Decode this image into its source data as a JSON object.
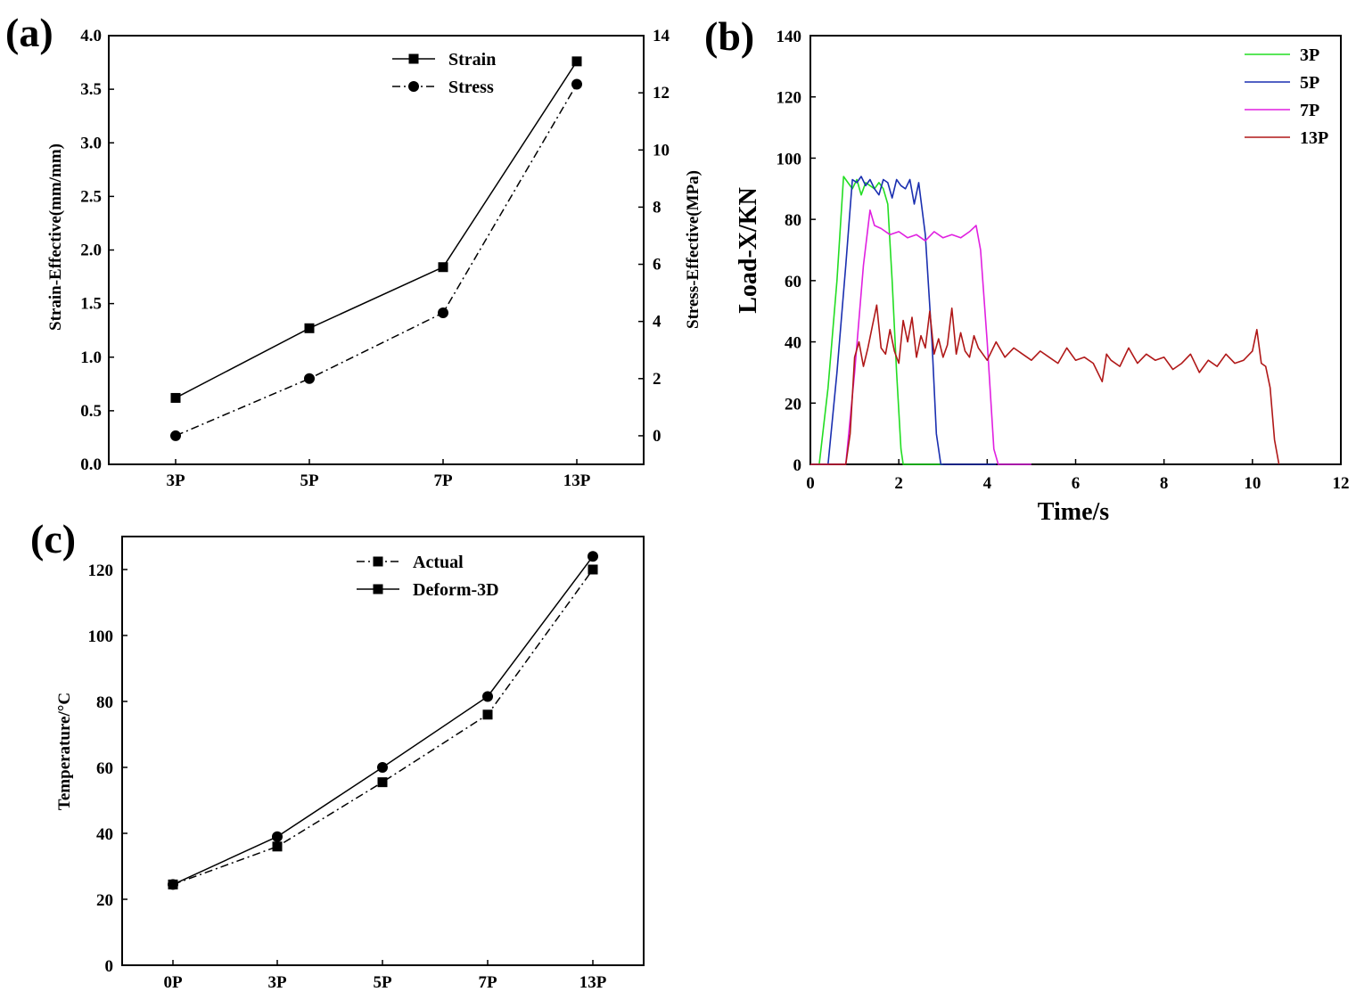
{
  "chart_data": [
    {
      "id": "a",
      "panel_label": "(a)",
      "type": "line",
      "categories": [
        "3P",
        "5P",
        "7P",
        "13P"
      ],
      "ylabel": "Strain-Effective(mm/mm)",
      "ylabel_right": "Stress-Effective(MPa)",
      "ylim": [
        0,
        4.0
      ],
      "ylim_right": [
        -1.0,
        14
      ],
      "yticks": [
        "0.0",
        "0.5",
        "1.0",
        "1.5",
        "2.0",
        "2.5",
        "3.0",
        "3.5",
        "4.0"
      ],
      "yticks_right": [
        "0",
        "2",
        "4",
        "6",
        "8",
        "10",
        "12",
        "14"
      ],
      "legend_position": "top-center",
      "series": [
        {
          "name": "Strain",
          "axis": "left",
          "marker": "square",
          "line": "solid",
          "values": [
            0.62,
            1.27,
            1.84,
            3.76
          ]
        },
        {
          "name": "Stress",
          "axis": "right",
          "marker": "circle",
          "line": "dashdot",
          "values": [
            0.0,
            2.0,
            4.3,
            12.3
          ]
        }
      ]
    },
    {
      "id": "b",
      "panel_label": "(b)",
      "type": "line",
      "xlabel": "Time/s",
      "ylabel": "Load-X/KN",
      "xlim": [
        0,
        12
      ],
      "ylim": [
        0,
        140
      ],
      "xticks": [
        "0",
        "2",
        "4",
        "6",
        "8",
        "10",
        "12"
      ],
      "yticks": [
        "0",
        "20",
        "40",
        "60",
        "80",
        "100",
        "120",
        "140"
      ],
      "legend_position": "top-right",
      "series": [
        {
          "name": "3P",
          "color": "#22dd22",
          "x": [
            0.0,
            0.2,
            0.4,
            0.6,
            0.75,
            0.85,
            0.95,
            1.05,
            1.15,
            1.25,
            1.35,
            1.45,
            1.55,
            1.65,
            1.75,
            1.85,
            1.95,
            2.05,
            2.1,
            2.5,
            3.0
          ],
          "y": [
            0,
            0,
            25,
            60,
            94,
            92,
            90,
            93,
            88,
            92,
            91,
            90,
            92,
            90,
            85,
            60,
            30,
            5,
            0,
            0,
            0
          ]
        },
        {
          "name": "5P",
          "color": "#1a2fb0",
          "x": [
            0.0,
            0.4,
            0.6,
            0.8,
            0.95,
            1.05,
            1.15,
            1.25,
            1.35,
            1.45,
            1.55,
            1.65,
            1.75,
            1.85,
            1.95,
            2.05,
            2.15,
            2.25,
            2.35,
            2.45,
            2.6,
            2.75,
            2.85,
            2.95,
            3.5,
            4.2
          ],
          "y": [
            0,
            0,
            30,
            65,
            93,
            92,
            94,
            91,
            93,
            90,
            88,
            93,
            92,
            87,
            93,
            91,
            90,
            93,
            85,
            92,
            75,
            40,
            10,
            0,
            0,
            0
          ]
        },
        {
          "name": "7P",
          "color": "#e020e0",
          "x": [
            0.0,
            0.8,
            1.0,
            1.2,
            1.35,
            1.45,
            1.6,
            1.8,
            2.0,
            2.2,
            2.4,
            2.6,
            2.8,
            3.0,
            3.2,
            3.4,
            3.6,
            3.75,
            3.85,
            4.0,
            4.15,
            4.25,
            5.0
          ],
          "y": [
            0,
            0,
            30,
            65,
            83,
            78,
            77,
            75,
            76,
            74,
            75,
            73,
            76,
            74,
            75,
            74,
            76,
            78,
            70,
            40,
            5,
            0,
            0
          ]
        },
        {
          "name": "13P",
          "color": "#b01818",
          "x": [
            0.0,
            0.3,
            0.4,
            0.8,
            0.9,
            1.0,
            1.1,
            1.2,
            1.3,
            1.4,
            1.5,
            1.6,
            1.7,
            1.8,
            1.9,
            2.0,
            2.1,
            2.2,
            2.3,
            2.4,
            2.5,
            2.6,
            2.7,
            2.8,
            2.9,
            3.0,
            3.1,
            3.2,
            3.3,
            3.4,
            3.5,
            3.6,
            3.7,
            3.8,
            3.9,
            4.0,
            4.2,
            4.4,
            4.6,
            4.8,
            5.0,
            5.2,
            5.4,
            5.6,
            5.8,
            6.0,
            6.2,
            6.4,
            6.6,
            6.7,
            6.8,
            7.0,
            7.2,
            7.4,
            7.6,
            7.8,
            8.0,
            8.2,
            8.4,
            8.6,
            8.8,
            9.0,
            9.2,
            9.4,
            9.6,
            9.8,
            10.0,
            10.1,
            10.2,
            10.3,
            10.4,
            10.5,
            10.6
          ],
          "y": [
            0,
            0,
            0,
            0,
            10,
            35,
            40,
            32,
            38,
            45,
            52,
            38,
            36,
            44,
            37,
            33,
            47,
            40,
            48,
            35,
            42,
            38,
            50,
            36,
            41,
            35,
            39,
            51,
            36,
            43,
            37,
            35,
            42,
            38,
            36,
            34,
            40,
            35,
            38,
            36,
            34,
            37,
            35,
            33,
            38,
            34,
            35,
            33,
            27,
            36,
            34,
            32,
            38,
            33,
            36,
            34,
            35,
            31,
            33,
            36,
            30,
            34,
            32,
            36,
            33,
            34,
            37,
            44,
            33,
            32,
            25,
            8,
            0
          ]
        }
      ]
    },
    {
      "id": "c",
      "panel_label": "(c)",
      "type": "line",
      "categories": [
        "0P",
        "3P",
        "5P",
        "7P",
        "13P"
      ],
      "ylabel": "Temperature/°C",
      "ylim": [
        0,
        130
      ],
      "yticks": [
        "0",
        "20",
        "40",
        "60",
        "80",
        "100",
        "120"
      ],
      "legend_position": "top-center",
      "series": [
        {
          "name": "Actual",
          "marker": "square",
          "line": "dashdot",
          "values": [
            24.5,
            36,
            55.5,
            76,
            120
          ]
        },
        {
          "name": "Deform-3D",
          "marker": "circle",
          "line": "solid",
          "values": [
            24.5,
            39,
            60,
            81.5,
            124
          ]
        }
      ]
    }
  ]
}
